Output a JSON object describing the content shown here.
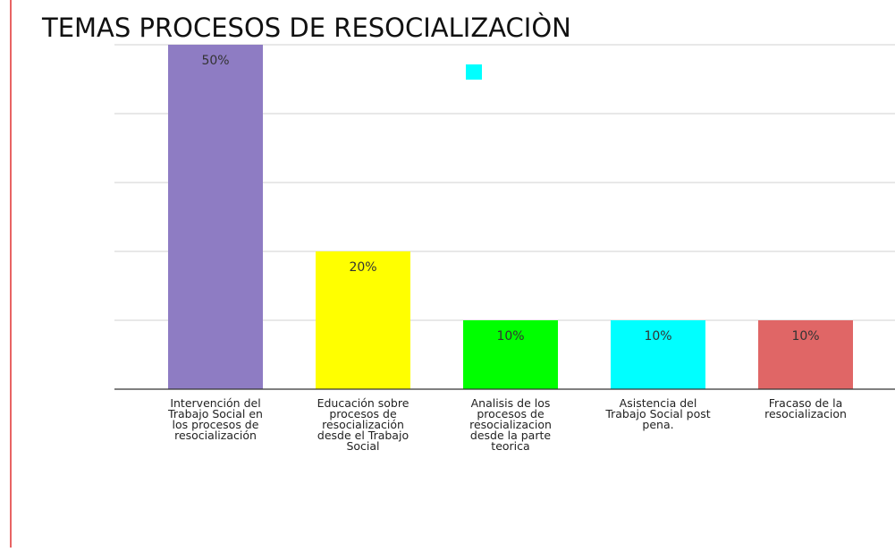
{
  "chart_data": {
    "type": "bar",
    "title": "TEMAS PROCESOS DE RESOCIALIZACIÒN",
    "categories": [
      "Intervención del Trabajo Social en los procesos de resocialización",
      "Educación sobre procesos de resocialización desde el Trabajo Social",
      "Analisis de los procesos de resocializacion desde la parte teorica",
      "Asistencia del Trabajo Social post pena.",
      "Fracaso de la resocializacion"
    ],
    "values": [
      50,
      20,
      10,
      10,
      10
    ],
    "value_labels": [
      "50%",
      "20%",
      "10%",
      "10%",
      "10%"
    ],
    "colors": [
      "#8e7cc3",
      "#ffff00",
      "#00ff00",
      "#00ffff",
      "#e06666"
    ],
    "ylim": [
      0,
      50
    ],
    "yticks": [
      0,
      10,
      20,
      30,
      40,
      50
    ],
    "grid": true
  }
}
